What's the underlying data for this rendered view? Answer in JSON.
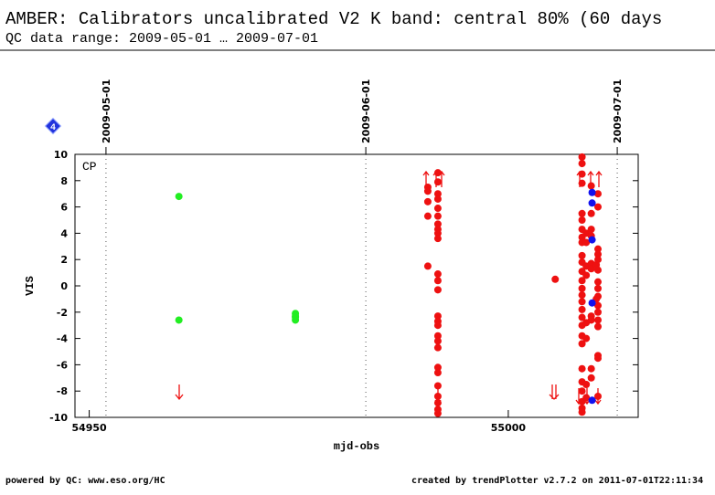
{
  "chart_data": {
    "type": "scatter",
    "title": "AMBER: Calibrators uncalibrated V2 K band: central 80% (60 days",
    "subtitle": "QC data range: 2009-05-01 … 2009-07-01",
    "x_label": "mjd-obs",
    "y_label": "VIS",
    "corner_label": "CP",
    "badge": "4",
    "footer_left": "powered by QC: www.eso.org/HC",
    "footer_right": "created by trendPlotter v2.7.2 on 2011-07-01T22:11:34",
    "xlim": [
      54948.3,
      55015.5
    ],
    "ylim": [
      -10,
      10
    ],
    "xticks": [
      54950,
      55000
    ],
    "yticks": [
      -10,
      -8,
      -6,
      -4,
      -2,
      0,
      2,
      4,
      6,
      8,
      10
    ],
    "date_markers": [
      {
        "value": 54952,
        "label": "2009-05-01"
      },
      {
        "value": 54983,
        "label": "2009-06-01"
      },
      {
        "value": 55013,
        "label": "2009-07-01"
      }
    ],
    "series": [
      {
        "color": "#22ee22",
        "x": [
          54960.7,
          54960.7,
          54974.6,
          54974.6,
          54974.6,
          54974.6
        ],
        "values": [
          6.8,
          -2.6,
          -2.1,
          -2.3,
          -2.4,
          -2.6
        ]
      },
      {
        "color": "#ee1111",
        "x": [
          54990.4,
          54990.4,
          54990.4,
          54990.4,
          54990.4,
          54991.6,
          54991.6,
          54991.6,
          54991.6,
          54991.6,
          54991.6,
          54991.6,
          54991.6,
          54991.6,
          54991.6,
          54991.6,
          54991.6,
          54991.6,
          54991.6,
          54991.6,
          54991.6,
          54991.6,
          54991.6,
          54991.6,
          54991.6,
          54991.6,
          54991.6,
          54991.6,
          54991.6,
          54991.6,
          54991.6,
          55005.6,
          55008.8,
          55008.8,
          55008.8,
          55008.8,
          55008.8,
          55008.8,
          55008.8,
          55008.8,
          55008.8,
          55008.8,
          55008.8,
          55008.8,
          55008.8,
          55008.8,
          55008.8,
          55008.8,
          55008.8,
          55008.8,
          55008.8,
          55008.8,
          55008.8,
          55008.8,
          55008.8,
          55008.8,
          55008.8,
          55008.8,
          55008.8,
          55009.3,
          55009.3,
          55009.3,
          55009.3,
          55009.3,
          55009.3,
          55009.3,
          55009.3,
          55009.9,
          55009.9,
          55009.9,
          55009.9,
          55009.9,
          55009.9,
          55009.9,
          55009.9,
          55009.9,
          55009.9,
          55010.5,
          55010.5,
          55010.7,
          55010.7,
          55010.7,
          55010.7,
          55010.7,
          55010.7,
          55010.7,
          55010.7,
          55010.7,
          55010.7,
          55010.7,
          55010.7,
          55010.7,
          55010.7,
          55010.7,
          55010.7
        ],
        "values": [
          7.5,
          7.2,
          6.4,
          5.3,
          1.5,
          8.6,
          7.9,
          7.0,
          6.6,
          5.9,
          5.3,
          4.7,
          4.3,
          4.0,
          3.6,
          0.9,
          0.4,
          -0.3,
          -2.3,
          -2.7,
          -3.0,
          -3.8,
          -4.2,
          -4.7,
          -6.2,
          -6.6,
          -7.6,
          -8.4,
          -8.9,
          -9.4,
          -9.7,
          0.5,
          9.8,
          9.3,
          8.5,
          7.8,
          5.5,
          5.0,
          4.3,
          3.7,
          3.3,
          2.3,
          1.8,
          1.1,
          0.4,
          -0.2,
          -0.7,
          -1.2,
          -1.8,
          -2.4,
          -3.0,
          -3.8,
          -4.4,
          -6.3,
          -7.3,
          -8.0,
          -8.8,
          -9.3,
          -9.6,
          4.0,
          3.3,
          1.5,
          0.8,
          -2.8,
          -4.0,
          -7.5,
          -8.5,
          7.6,
          5.5,
          4.3,
          3.8,
          1.7,
          1.3,
          -2.3,
          -2.6,
          -6.3,
          -7.0,
          1.6,
          -1.0,
          7.0,
          6.0,
          2.8,
          2.4,
          2.0,
          1.2,
          0.3,
          -0.2,
          -0.8,
          -1.5,
          -2.0,
          -2.6,
          -3.1,
          -5.3,
          -5.5,
          -8.4
        ]
      },
      {
        "color": "#1111ee",
        "x": [
          55010.0,
          55010.0,
          55010.0,
          55010.0,
          55010.0
        ],
        "values": [
          7.1,
          6.3,
          3.5,
          -1.3,
          -8.7
        ]
      }
    ]
  }
}
